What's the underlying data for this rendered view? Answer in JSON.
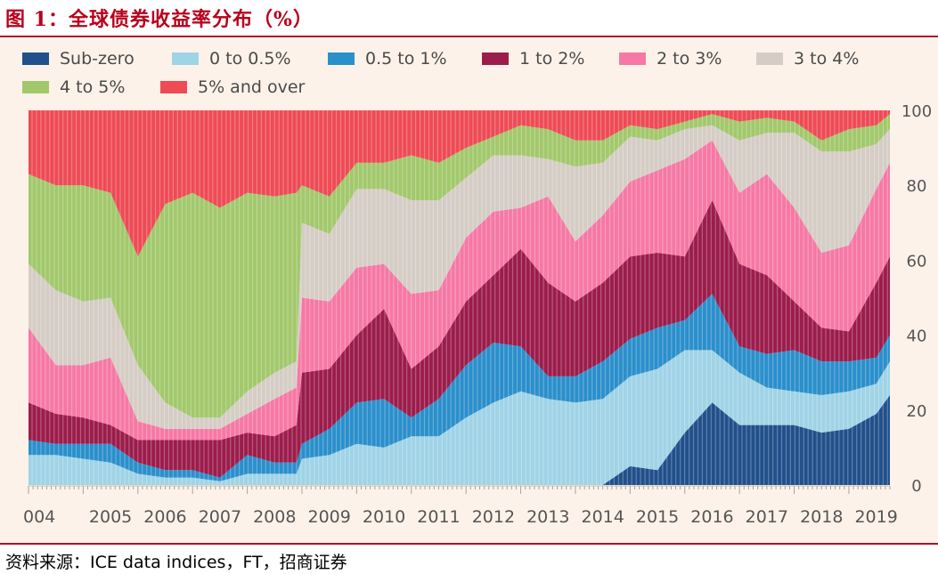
{
  "title": "图 1：全球债券收益率分布（%）",
  "source": "资料来源：ICE data indices，FT，招商证券",
  "chart_data": {
    "type": "stacked-area",
    "x_start": 2004.0,
    "x_end": 2019.75,
    "xlabel": "",
    "ylabel": "",
    "ylim": [
      0,
      100
    ],
    "y_ticks": [
      "0",
      "20",
      "40",
      "60",
      "80",
      "100"
    ],
    "x_tick_labels": [
      "004",
      "2005",
      "2006",
      "2007",
      "2008",
      "2009",
      "2010",
      "2011",
      "2012",
      "2013",
      "2014",
      "2015",
      "2016",
      "2017",
      "2018",
      "2019"
    ],
    "legend_position": "top",
    "legend": [
      "Sub-zero",
      "0 to 0.5%",
      "0.5 to 1%",
      "1 to 2%",
      "2 to 3%",
      "3 to 4%",
      "4 to 5%",
      "5% and over"
    ],
    "colors": [
      "#21508b",
      "#9fd3e6",
      "#2b8fcb",
      "#9b1d4c",
      "#f678a4",
      "#d5cdc5",
      "#a2c86c",
      "#ee4b55"
    ],
    "x": [
      2004.0,
      2004.5,
      2005.0,
      2005.5,
      2006.0,
      2006.5,
      2007.0,
      2007.5,
      2008.0,
      2008.5,
      2008.9,
      2009.0,
      2009.5,
      2010.0,
      2010.5,
      2011.0,
      2011.5,
      2012.0,
      2012.5,
      2013.0,
      2013.5,
      2014.0,
      2014.5,
      2015.0,
      2015.5,
      2016.0,
      2016.5,
      2017.0,
      2017.5,
      2018.0,
      2018.5,
      2019.0,
      2019.5,
      2019.75
    ],
    "series": [
      {
        "name": "Sub-zero",
        "values": [
          0,
          0,
          0,
          0,
          0,
          0,
          0,
          0,
          0,
          0,
          0,
          0,
          0,
          0,
          0,
          0,
          0,
          0,
          0,
          0,
          0,
          0,
          0,
          5,
          4,
          14,
          22,
          16,
          16,
          16,
          14,
          15,
          19,
          24
        ]
      },
      {
        "name": "0 to 0.5%",
        "values": [
          8,
          8,
          7,
          6,
          3,
          2,
          2,
          1,
          3,
          3,
          3,
          7,
          8,
          11,
          10,
          13,
          13,
          18,
          22,
          25,
          23,
          22,
          23,
          24,
          27,
          22,
          14,
          14,
          10,
          9,
          10,
          10,
          8,
          9
        ]
      },
      {
        "name": "0.5 to 1%",
        "values": [
          4,
          3,
          4,
          5,
          3,
          2,
          2,
          1,
          5,
          3,
          3,
          4,
          7,
          11,
          13,
          5,
          10,
          14,
          16,
          12,
          6,
          7,
          10,
          10,
          11,
          8,
          15,
          7,
          9,
          11,
          9,
          8,
          7,
          7
        ]
      },
      {
        "name": "1 to 2%",
        "values": [
          10,
          8,
          7,
          5,
          6,
          8,
          8,
          10,
          6,
          7,
          10,
          19,
          16,
          18,
          24,
          13,
          14,
          17,
          18,
          26,
          25,
          20,
          21,
          22,
          20,
          17,
          25,
          22,
          21,
          13,
          9,
          8,
          20,
          21
        ]
      },
      {
        "name": "2 to 3%",
        "values": [
          20,
          13,
          14,
          18,
          5,
          3,
          3,
          3,
          5,
          10,
          10,
          20,
          18,
          18,
          12,
          20,
          15,
          17,
          17,
          11,
          23,
          16,
          18,
          20,
          22,
          26,
          16,
          19,
          27,
          25,
          20,
          23,
          25,
          25
        ]
      },
      {
        "name": "3 to 4%",
        "values": [
          17,
          20,
          17,
          16,
          15,
          7,
          3,
          3,
          6,
          7,
          7,
          20,
          18,
          21,
          20,
          25,
          24,
          16,
          15,
          14,
          10,
          20,
          14,
          12,
          8,
          8,
          4,
          14,
          11,
          20,
          27,
          25,
          12,
          9
        ]
      },
      {
        "name": "4 to 5%",
        "values": [
          24,
          28,
          31,
          28,
          29,
          53,
          60,
          56,
          53,
          47,
          45,
          10,
          10,
          7,
          7,
          12,
          10,
          8,
          5,
          8,
          8,
          7,
          6,
          3,
          3,
          2,
          3,
          5,
          4,
          3,
          3,
          6,
          5,
          4
        ]
      },
      {
        "name": "5% and over",
        "values": [
          17,
          20,
          20,
          22,
          39,
          25,
          22,
          26,
          22,
          23,
          22,
          20,
          23,
          14,
          14,
          12,
          14,
          10,
          7,
          4,
          5,
          8,
          8,
          4,
          5,
          3,
          1,
          3,
          2,
          3,
          8,
          5,
          4,
          1
        ]
      }
    ]
  }
}
